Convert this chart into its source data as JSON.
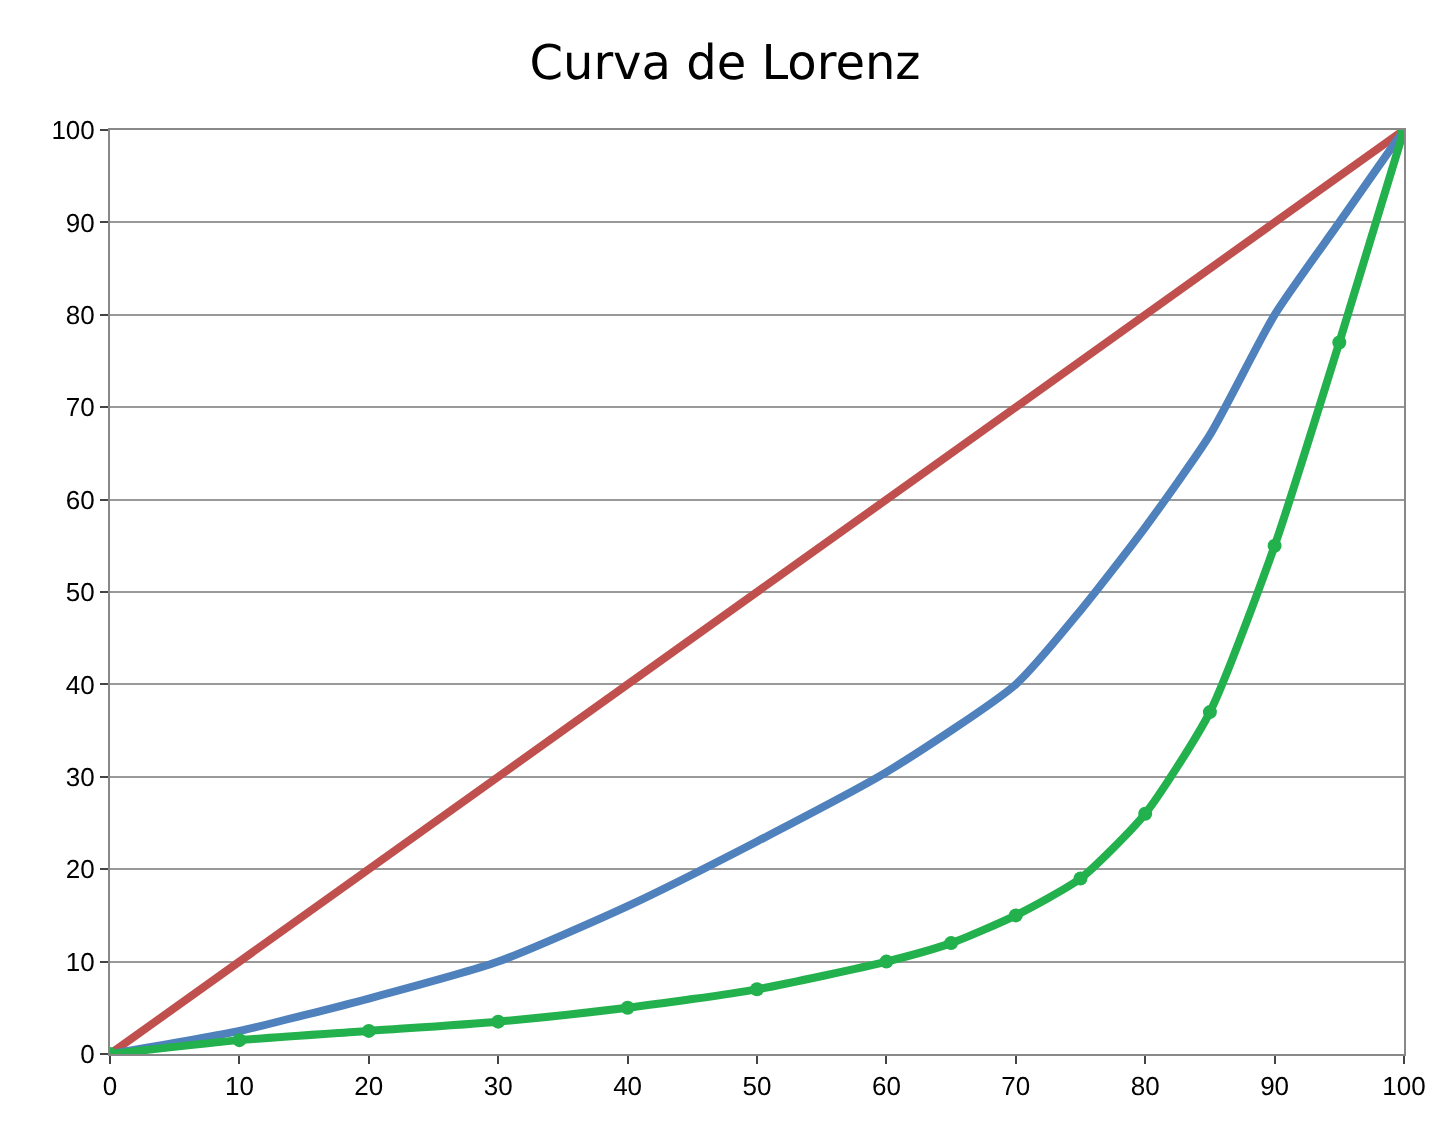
{
  "chart_data": {
    "type": "line",
    "title": "Curva de Lorenz",
    "xlim": [
      0,
      100
    ],
    "ylim": [
      0,
      100
    ],
    "xticks": [
      0,
      10,
      20,
      30,
      40,
      50,
      60,
      70,
      80,
      90,
      100
    ],
    "yticks": [
      0,
      10,
      20,
      30,
      40,
      50,
      60,
      70,
      80,
      90,
      100
    ],
    "grid": "y",
    "series": [
      {
        "color": "#c0504d",
        "x": [
          0,
          100
        ],
        "values": [
          0,
          100
        ]
      },
      {
        "color": "#4f81bd",
        "x": [
          0,
          10,
          20,
          30,
          40,
          50,
          60,
          70,
          75,
          80,
          85,
          90,
          95,
          100
        ],
        "values": [
          0,
          2.5,
          6,
          10,
          16,
          23,
          30.5,
          40,
          48,
          57,
          67,
          80,
          90,
          100
        ]
      },
      {
        "color": "#22b14c",
        "marker": "circle",
        "x": [
          0,
          10,
          20,
          30,
          40,
          50,
          60,
          65,
          70,
          75,
          80,
          85,
          90,
          95,
          100
        ],
        "values": [
          0,
          1.5,
          2.5,
          3.5,
          5,
          7,
          10,
          12,
          15,
          19,
          26,
          37,
          55,
          77,
          100
        ]
      }
    ]
  }
}
